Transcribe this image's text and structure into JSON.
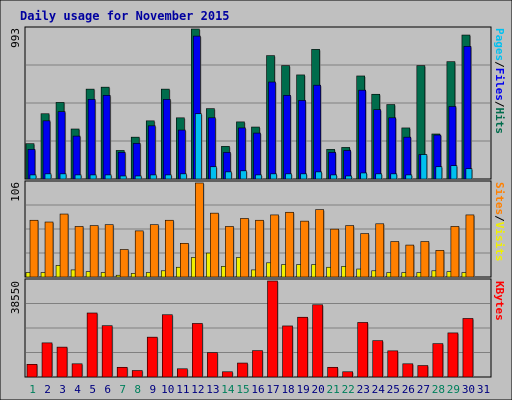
{
  "chart_data": {
    "type": "bar",
    "title": "Daily usage for November 2015",
    "days": [
      "1",
      "2",
      "3",
      "4",
      "5",
      "6",
      "7",
      "8",
      "9",
      "10",
      "11",
      "12",
      "13",
      "14",
      "15",
      "16",
      "17",
      "18",
      "19",
      "20",
      "21",
      "22",
      "23",
      "24",
      "25",
      "26",
      "27",
      "28",
      "29",
      "30",
      "31"
    ],
    "weekend_days": [
      1,
      7,
      8,
      14,
      15,
      21,
      22,
      28,
      29
    ],
    "colors": {
      "hits": "#006c4c",
      "files": "#0000f0",
      "pages": "#00c0f0",
      "visits": "#f0f000",
      "sites": "#ff8000",
      "kbytes": "#ff0000",
      "weekend_label": "#00805c",
      "weekday_label": "#000080",
      "background": "#c0c0c0",
      "plot": "#c0c0c0",
      "gridline": "#808080"
    },
    "panels": {
      "hits_files_pages": {
        "ymax_label": "993",
        "ylim": [
          0,
          993
        ],
        "right_label_parts": [
          "Pages",
          "/",
          "Files",
          "/",
          "Hits"
        ],
        "series": {
          "hits": [
            234,
            432,
            507,
            331,
            595,
            608,
            189,
            277,
            385,
            595,
            405,
            993,
            466,
            216,
            378,
            344,
            817,
            750,
            689,
            858,
            196,
            209,
            682,
            561,
            493,
            338,
            750,
            298,
            777,
            953,
            0
          ],
          "files": [
            196,
            385,
            446,
            284,
            527,
            554,
            176,
            236,
            352,
            527,
            324,
            946,
            405,
            176,
            338,
            304,
            642,
            554,
            520,
            621,
            176,
            189,
            588,
            459,
            405,
            277,
            162,
            291,
            480,
            878,
            0
          ],
          "pages": [
            27,
            34,
            34,
            27,
            27,
            27,
            20,
            20,
            27,
            27,
            34,
            432,
            81,
            47,
            54,
            27,
            34,
            34,
            34,
            47,
            27,
            20,
            40,
            34,
            34,
            27,
            162,
            81,
            88,
            68,
            0
          ]
        }
      },
      "visits_sites": {
        "ymax_label": "106",
        "ylim": [
          0,
          106
        ],
        "right_label_parts": [
          "Sites",
          "/",
          "Visits"
        ],
        "series": {
          "visits": [
            5,
            5,
            13,
            8,
            6,
            5,
            2,
            4,
            5,
            7,
            11,
            22,
            27,
            12,
            22,
            8,
            16,
            14,
            14,
            14,
            11,
            12,
            9,
            7,
            5,
            5,
            5,
            7,
            6,
            5,
            0
          ],
          "sites": [
            64,
            62,
            71,
            57,
            58,
            59,
            31,
            52,
            59,
            64,
            38,
            106,
            72,
            57,
            66,
            64,
            70,
            73,
            63,
            76,
            54,
            58,
            49,
            60,
            40,
            36,
            40,
            30,
            57,
            70,
            0
          ]
        }
      },
      "kbytes": {
        "ymax_label": "38550",
        "ylim": [
          0,
          38550
        ],
        "right_label_parts": [
          "KBytes"
        ],
        "series": {
          "kbytes": [
            5100,
            13700,
            12000,
            5300,
            25700,
            20600,
            3900,
            2600,
            16000,
            25000,
            3300,
            21500,
            9800,
            2100,
            5600,
            10600,
            38550,
            20500,
            24000,
            29000,
            3900,
            2100,
            21900,
            14600,
            10500,
            5300,
            4600,
            13400,
            17700,
            23500,
            0
          ]
        }
      }
    }
  }
}
